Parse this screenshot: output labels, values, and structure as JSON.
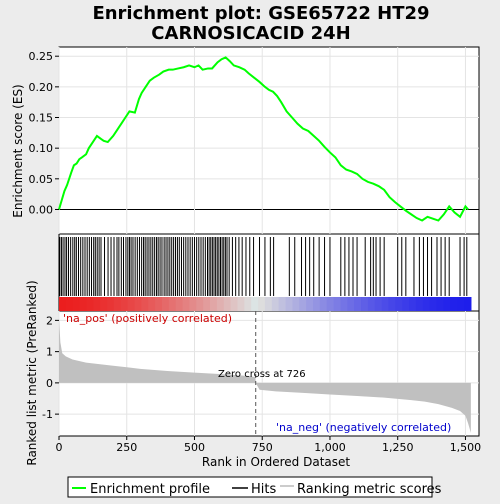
{
  "title_line1": "Enrichment plot: GSE65722 HT29",
  "title_line2": "CARNOSICACID 24H",
  "chart_data": {
    "type": "line",
    "title": "Enrichment plot: GSE65722 HT29 CARNOSICACID 24H",
    "xlabel": "Rank in Ordered Dataset",
    "xlim": [
      0,
      1550
    ],
    "x_ticks": [
      0,
      250,
      500,
      750,
      1000,
      1250,
      1500
    ],
    "x_tick_labels": [
      "0",
      "250",
      "500",
      "750",
      "1,000",
      "1,250",
      "1,500"
    ],
    "es_panel": {
      "ylabel": "Enrichment score (ES)",
      "ylim": [
        -0.04,
        0.265
      ],
      "y_ticks": [
        0.0,
        0.05,
        0.1,
        0.15,
        0.2,
        0.25
      ],
      "y_tick_labels": [
        "0.00",
        "0.05",
        "0.10",
        "0.15",
        "0.20",
        "0.25"
      ],
      "series": [
        {
          "name": "Enrichment profile",
          "color": "#00ff00",
          "x": [
            0,
            10,
            20,
            30,
            45,
            55,
            65,
            75,
            85,
            100,
            110,
            125,
            140,
            155,
            165,
            180,
            200,
            215,
            230,
            245,
            260,
            280,
            295,
            305,
            320,
            335,
            350,
            370,
            385,
            405,
            420,
            440,
            460,
            480,
            500,
            515,
            530,
            550,
            565,
            585,
            600,
            615,
            630,
            645,
            665,
            685,
            700,
            720,
            740,
            760,
            775,
            790,
            805,
            820,
            840,
            860,
            880,
            900,
            920,
            940,
            960,
            980,
            1000,
            1020,
            1040,
            1060,
            1080,
            1100,
            1120,
            1140,
            1160,
            1180,
            1200,
            1220,
            1240,
            1260,
            1280,
            1300,
            1320,
            1340,
            1360,
            1380,
            1400,
            1420,
            1440,
            1460,
            1480,
            1500,
            1510
          ],
          "values": [
            0.0,
            0.015,
            0.03,
            0.04,
            0.06,
            0.072,
            0.075,
            0.082,
            0.085,
            0.09,
            0.1,
            0.11,
            0.12,
            0.115,
            0.112,
            0.11,
            0.12,
            0.13,
            0.14,
            0.15,
            0.16,
            0.158,
            0.18,
            0.19,
            0.2,
            0.21,
            0.215,
            0.22,
            0.225,
            0.228,
            0.228,
            0.23,
            0.232,
            0.235,
            0.232,
            0.235,
            0.228,
            0.23,
            0.23,
            0.24,
            0.245,
            0.248,
            0.242,
            0.235,
            0.232,
            0.228,
            0.222,
            0.215,
            0.208,
            0.2,
            0.195,
            0.192,
            0.185,
            0.175,
            0.16,
            0.15,
            0.14,
            0.132,
            0.128,
            0.12,
            0.112,
            0.102,
            0.093,
            0.085,
            0.072,
            0.065,
            0.062,
            0.058,
            0.05,
            0.045,
            0.042,
            0.038,
            0.032,
            0.02,
            0.012,
            0.005,
            -0.002,
            -0.008,
            -0.014,
            -0.018,
            -0.012,
            -0.015,
            -0.018,
            -0.008,
            0.005,
            -0.005,
            -0.012,
            0.005,
            0.0
          ]
        }
      ]
    },
    "hits_panel": {
      "legend_name": "Hits",
      "hit_ranks": [
        3,
        9,
        15,
        22,
        28,
        35,
        43,
        51,
        58,
        64,
        72,
        80,
        88,
        96,
        104,
        112,
        120,
        128,
        134,
        141,
        148,
        155,
        168,
        181,
        192,
        203,
        214,
        221,
        230,
        238,
        247,
        254,
        260,
        266,
        273,
        281,
        289,
        297,
        305,
        312,
        318,
        325,
        332,
        339,
        346,
        353,
        360,
        366,
        373,
        380,
        388,
        395,
        402,
        409,
        416,
        423,
        430,
        437,
        444,
        452,
        460,
        468,
        476,
        484,
        492,
        500,
        508,
        516,
        524,
        532,
        540,
        548,
        554,
        560,
        566,
        572,
        578,
        584,
        590,
        596,
        602,
        608,
        614,
        620,
        628,
        640,
        652,
        664,
        676,
        690,
        704,
        718,
        740,
        760,
        780,
        792,
        850,
        870,
        895,
        910,
        925,
        940,
        960,
        980,
        1000,
        1040,
        1055,
        1070,
        1085,
        1100,
        1130,
        1150,
        1160,
        1170,
        1185,
        1200,
        1250,
        1265,
        1280,
        1310,
        1330,
        1345,
        1360,
        1375,
        1395,
        1410,
        1425,
        1440,
        1480,
        1495,
        1505
      ]
    },
    "metric_panel": {
      "ylabel": "Ranked list metric (PreRanked)",
      "legend_name": "Ranking metric scores",
      "ylim": [
        -1.7,
        2.3
      ],
      "y_ticks": [
        -1,
        0,
        1,
        2
      ],
      "y_tick_labels": [
        "-1",
        "0",
        "1",
        "2"
      ],
      "x": [
        0,
        5,
        12,
        25,
        50,
        100,
        200,
        300,
        400,
        500,
        600,
        700,
        725,
        726,
        740,
        800,
        900,
        1000,
        1100,
        1200,
        1300,
        1350,
        1400,
        1450,
        1480,
        1500,
        1510,
        1520
      ],
      "values": [
        2.1,
        1.3,
        0.95,
        0.85,
        0.75,
        0.65,
        0.55,
        0.45,
        0.38,
        0.33,
        0.28,
        0.22,
        0.18,
        0.0,
        -0.22,
        -0.27,
        -0.32,
        -0.37,
        -0.42,
        -0.47,
        -0.55,
        -0.6,
        -0.68,
        -0.8,
        -0.9,
        -1.05,
        -1.3,
        -1.6
      ],
      "zero_cross_label": "Zero cross at 726",
      "zero_cross_rank": 726,
      "pos_label": "'na_pos' (positively correlated)",
      "neg_label": "'na_neg' (negatively correlated)",
      "pos_label_color": "#cc0000",
      "neg_label_color": "#0000cc"
    },
    "legend": {
      "placement": "bottom",
      "entries": [
        "Enrichment profile",
        "Hits",
        "Ranking metric scores"
      ]
    },
    "grid": true
  }
}
